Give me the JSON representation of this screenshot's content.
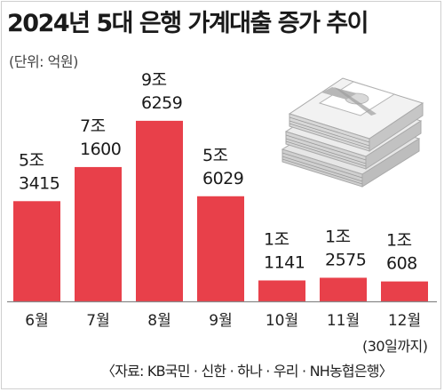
{
  "title": "2024년 5대 은행 가계대출 증가 추이",
  "unit": "(단위: 억원)",
  "note": "(30일까지)",
  "source": "〈자료: KB국민 · 신한 · 하나 · 우리 · NH농협은행〉",
  "icon": "money-stack-icon",
  "colors": {
    "bar": "#e8404a",
    "baseline": "#888888"
  },
  "chart_data": {
    "type": "bar",
    "title": "2024년 5대 은행 가계대출 증가 추이",
    "ylabel": "(단위: 억원)",
    "categories": [
      "6월",
      "7월",
      "8월",
      "9월",
      "10월",
      "11월",
      "12월"
    ],
    "values": [
      53415,
      71600,
      96259,
      56029,
      11141,
      12575,
      10608
    ],
    "labels": [
      [
        "5조",
        "3415"
      ],
      [
        "7조",
        "1600"
      ],
      [
        "9조",
        "6259"
      ],
      [
        "5조",
        "6029"
      ],
      [
        "1조",
        "1141"
      ],
      [
        "1조",
        "2575"
      ],
      [
        "1조",
        "608"
      ]
    ],
    "ylim": [
      0,
      100000
    ],
    "grid": false
  }
}
